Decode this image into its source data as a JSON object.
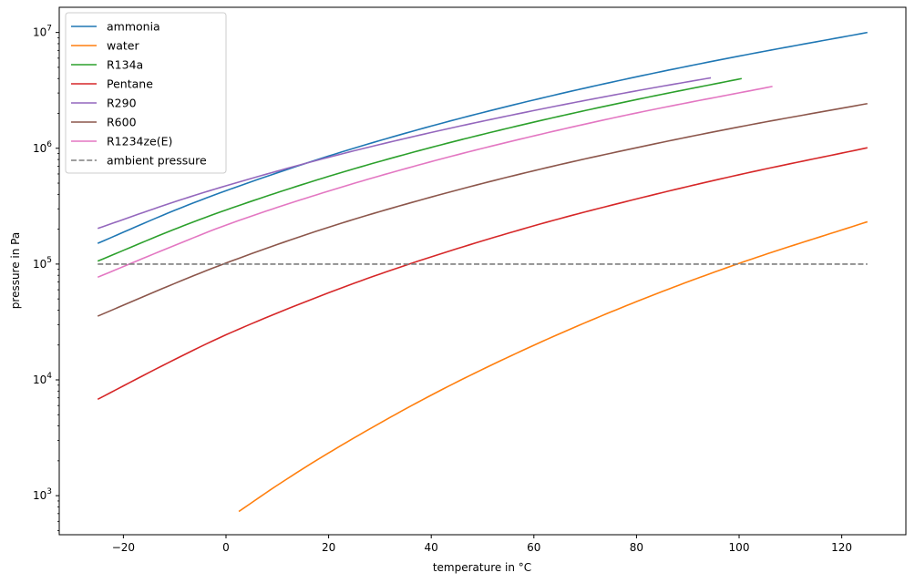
{
  "chart_data": {
    "type": "line",
    "title": "",
    "xlabel": "temperature in °C",
    "ylabel": "pressure in Pa",
    "xscale": "linear",
    "yscale": "log",
    "xlim": [
      -32.5,
      132.5
    ],
    "ylim": [
      460,
      16500000
    ],
    "grid": false,
    "legend_position": "upper-left",
    "x_ticks": [
      {
        "value": -20,
        "label": "−20"
      },
      {
        "value": 0,
        "label": "0"
      },
      {
        "value": 20,
        "label": "20"
      },
      {
        "value": 40,
        "label": "40"
      },
      {
        "value": 60,
        "label": "60"
      },
      {
        "value": 80,
        "label": "80"
      },
      {
        "value": 100,
        "label": "100"
      },
      {
        "value": 120,
        "label": "120"
      }
    ],
    "y_ticks": [
      {
        "value": 1000,
        "base": "10",
        "exp": "3"
      },
      {
        "value": 10000,
        "base": "10",
        "exp": "4"
      },
      {
        "value": 100000,
        "base": "10",
        "exp": "5"
      },
      {
        "value": 1000000,
        "base": "10",
        "exp": "6"
      },
      {
        "value": 10000000,
        "base": "10",
        "exp": "7"
      }
    ],
    "series": [
      {
        "name": "ammonia",
        "color": "#1f77b4",
        "style": "solid",
        "x": [
          -25,
          -10,
          0,
          20,
          40,
          60,
          80,
          100,
          125
        ],
        "y": [
          151000,
          291000,
          430000,
          857000,
          1555000,
          2614000,
          4140000,
          6250000,
          10000000
        ]
      },
      {
        "name": "water",
        "color": "#ff7f0e",
        "style": "solid",
        "x": [
          2.5,
          10,
          20,
          40,
          60,
          80,
          100,
          125
        ],
        "y": [
          730,
          1230,
          2340,
          7380,
          19900,
          47400,
          101400,
          232000
        ]
      },
      {
        "name": "R134a",
        "color": "#2ca02c",
        "style": "solid",
        "x": [
          -25,
          -10,
          0,
          20,
          40,
          60,
          80,
          100.5
        ],
        "y": [
          106000,
          200000,
          293000,
          572000,
          1017000,
          1682000,
          2633000,
          4000000
        ]
      },
      {
        "name": "Pentane",
        "color": "#d62728",
        "style": "solid",
        "x": [
          -25,
          -10,
          0,
          20,
          36,
          60,
          80,
          100,
          125
        ],
        "y": [
          6800,
          15000,
          24500,
          56500,
          101000,
          214000,
          365000,
          591000,
          1010000
        ]
      },
      {
        "name": "R290",
        "color": "#9467bd",
        "style": "solid",
        "x": [
          -25,
          -10,
          0,
          20,
          40,
          60,
          80,
          94.5
        ],
        "y": [
          203000,
          345000,
          474000,
          836000,
          1369000,
          2117000,
          3134000,
          4060000
        ]
      },
      {
        "name": "R600",
        "color": "#8c564b",
        "style": "solid",
        "x": [
          -25,
          -10,
          0,
          20,
          40,
          60,
          80,
          100,
          125
        ],
        "y": [
          35500,
          68000,
          102000,
          208000,
          379000,
          640000,
          1011000,
          1529000,
          2430000
        ]
      },
      {
        "name": "R1234ze(E)",
        "color": "#e377c2",
        "style": "solid",
        "x": [
          -25,
          -10,
          0,
          20,
          40,
          60,
          80,
          106.5
        ],
        "y": [
          77000,
          145000,
          217000,
          427000,
          767000,
          1279000,
          2017000,
          3420000
        ]
      },
      {
        "name": "ambient pressure",
        "color": "#7f7f7f",
        "style": "dashed",
        "x": [
          -25,
          125
        ],
        "y": [
          100000,
          100000
        ]
      }
    ]
  }
}
